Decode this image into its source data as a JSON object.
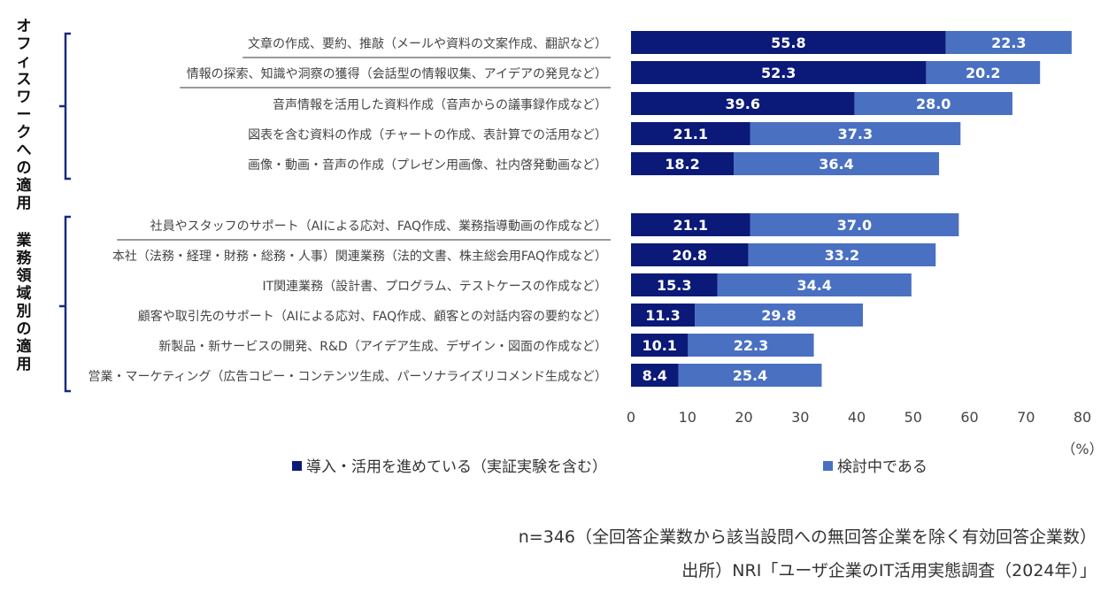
{
  "chart_data": {
    "type": "bar",
    "stacked": true,
    "orientation": "horizontal",
    "groups": [
      {
        "label": "オフィスワークへの適用",
        "categories": [
          0,
          1,
          2,
          3,
          4
        ]
      },
      {
        "label": "業務領域別の適用",
        "categories": [
          5,
          6,
          7,
          8,
          9,
          10
        ]
      }
    ],
    "categories": [
      "文章の作成、要約、推敲（メールや資料の文案作成、翻訳など）",
      "情報の探索、知識や洞察の獲得（会話型の情報収集、アイデアの発見など）",
      "音声情報を活用した資料作成（音声からの議事録作成など）",
      "図表を含む資料の作成（チャートの作成、表計算での活用など）",
      "画像・動画・音声の作成（プレゼン用画像、社内啓発動画など）",
      "社員やスタッフのサポート（AIによる応対、FAQ作成、業務指導動画の作成など）",
      "本社（法務・経理・財務・総務・人事）関連業務（法的文書、株主総会用FAQ作成など）",
      "IT関連業務（設計書、プログラム、テストケースの作成など）",
      "顧客や取引先のサポート（AIによる応対、FAQ作成、顧客との対話内容の要約など）",
      "新製品・新サービスの開発、R&D（アイデア生成、デザイン・図面の作成など）",
      "営業・マーケティング（広告コピー・コンテンツ生成、パーソナライズリコメンド生成など）"
    ],
    "underlined": [
      0,
      1,
      5
    ],
    "series": [
      {
        "name": "導入・活用を進めている（実証実験を含む）",
        "color": "#0b1a78",
        "values": [
          55.8,
          52.3,
          39.6,
          21.1,
          18.2,
          21.1,
          20.8,
          15.3,
          11.3,
          10.1,
          8.4
        ]
      },
      {
        "name": "検討中である",
        "color": "#4a70c2",
        "values": [
          22.3,
          20.2,
          28.0,
          37.3,
          36.4,
          37.0,
          33.2,
          34.4,
          29.8,
          22.3,
          25.4
        ]
      }
    ],
    "xlim": [
      0,
      80
    ],
    "xticks": [
      "0",
      "10",
      "20",
      "30",
      "40",
      "50",
      "60",
      "70",
      "80"
    ],
    "xlabel": "（%）",
    "legend_position": "bottom"
  },
  "notes": {
    "sample": "n=346（全回答企業数から該当設問への無回答企業を除く有効回答企業数）",
    "source": "出所）NRI「ユーザ企業のIT活用実態調査（2024年）」"
  }
}
